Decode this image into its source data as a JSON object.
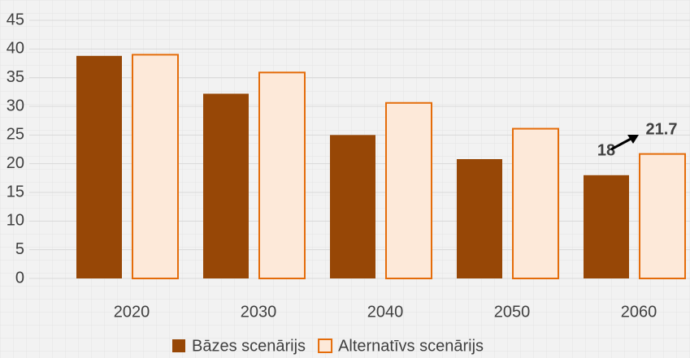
{
  "chart_data": {
    "type": "bar",
    "categories": [
      "2020",
      "2030",
      "2040",
      "2050",
      "2060"
    ],
    "series": [
      {
        "name": "Bāzes scenārijs",
        "color": "#974706",
        "values": [
          38.8,
          32.2,
          25,
          20.8,
          18
        ]
      },
      {
        "name": "Alternatīvs scenārijs",
        "color": "#fde9d9",
        "values": [
          39,
          35.9,
          30.6,
          26.1,
          21.7
        ]
      }
    ],
    "ylim": [
      0,
      45
    ],
    "yticks": [
      0,
      5,
      10,
      15,
      20,
      25,
      30,
      35,
      40,
      45
    ],
    "grid": true
  }
}
